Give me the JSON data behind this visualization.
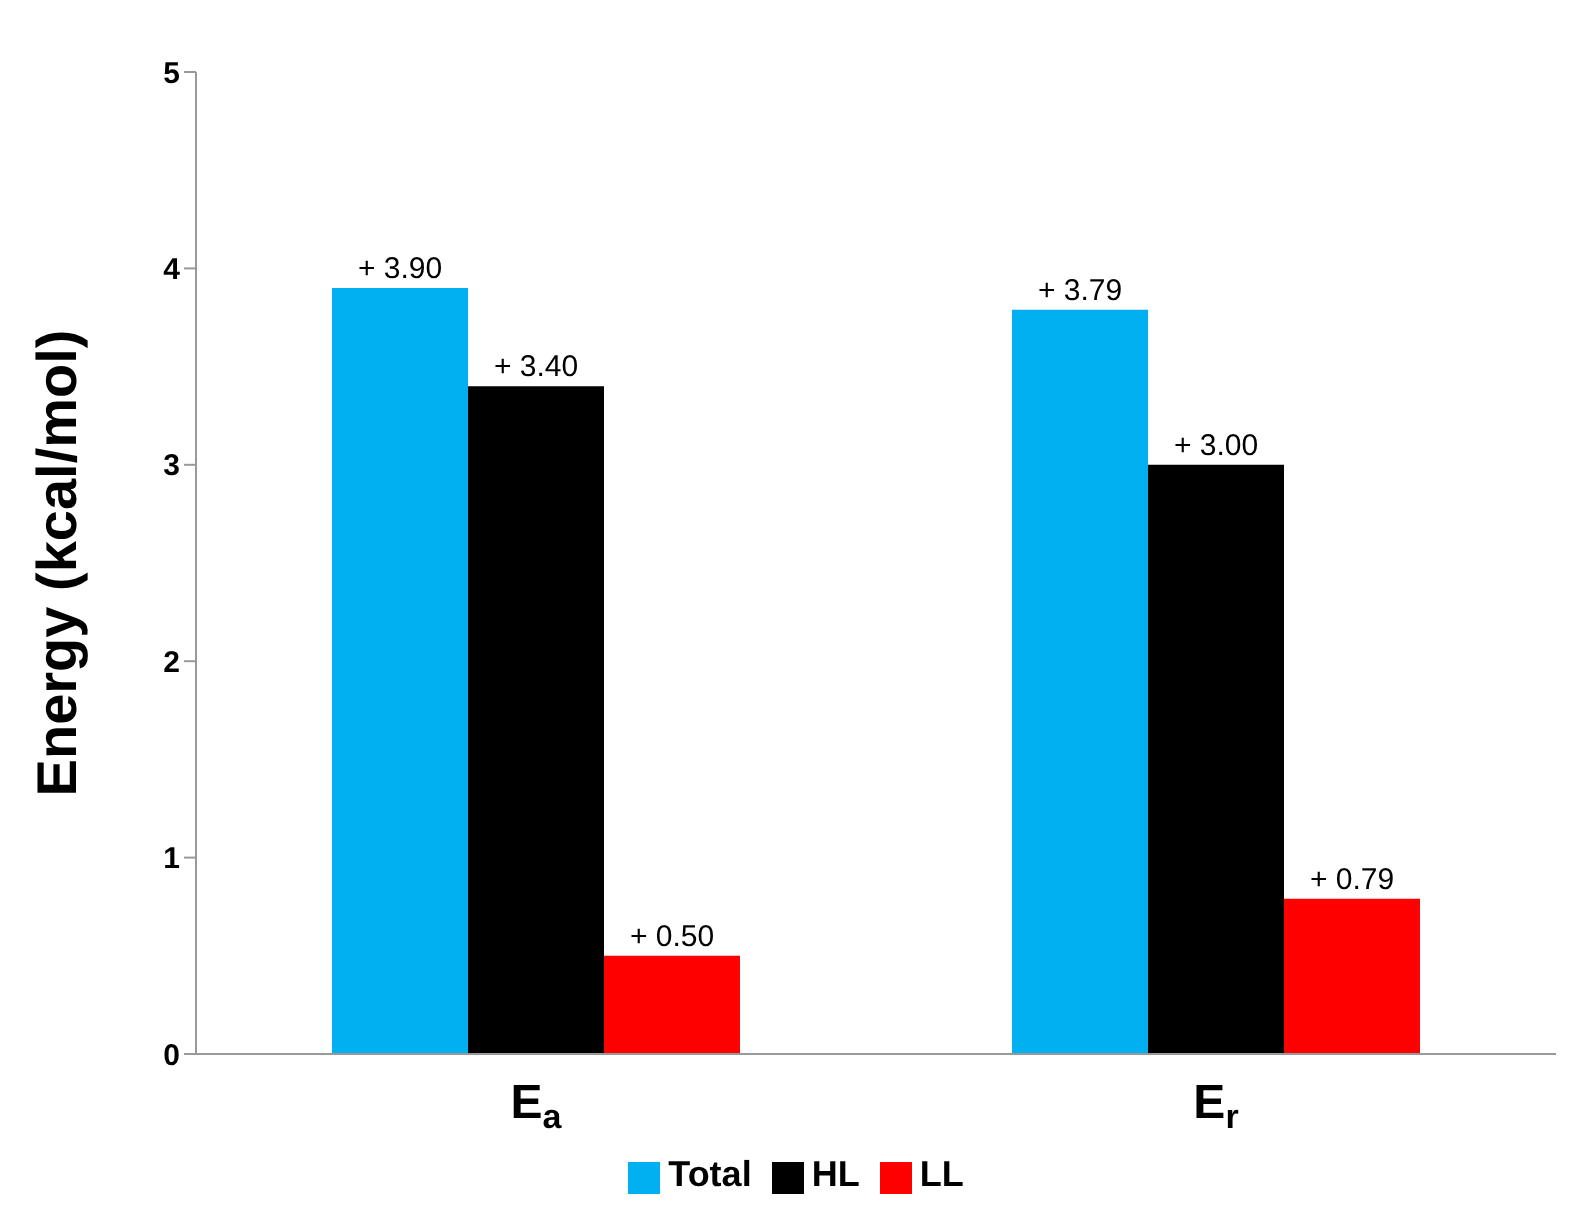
{
  "chart_data": {
    "type": "bar",
    "ylabel": "Energy (kcal/mol)",
    "categories": [
      "E$_{a}$",
      "E$_{r}$"
    ],
    "series": [
      {
        "name": "Total",
        "color": "#00b0f0",
        "values": [
          3.9,
          3.79
        ],
        "value_labels": [
          "+ 3.90",
          "+ 3.79"
        ]
      },
      {
        "name": "HL",
        "color": "#000000",
        "values": [
          3.4,
          3.0
        ],
        "value_labels": [
          "+ 3.40",
          "+ 3.00"
        ]
      },
      {
        "name": "LL",
        "color": "#ff0000",
        "values": [
          0.5,
          0.79
        ],
        "value_labels": [
          "+ 0.50",
          "+ 0.79"
        ]
      }
    ],
    "ylim": [
      0,
      5
    ],
    "yticks": [
      0,
      1,
      2,
      3,
      4,
      5
    ],
    "grid": false,
    "legend": "bottom"
  }
}
